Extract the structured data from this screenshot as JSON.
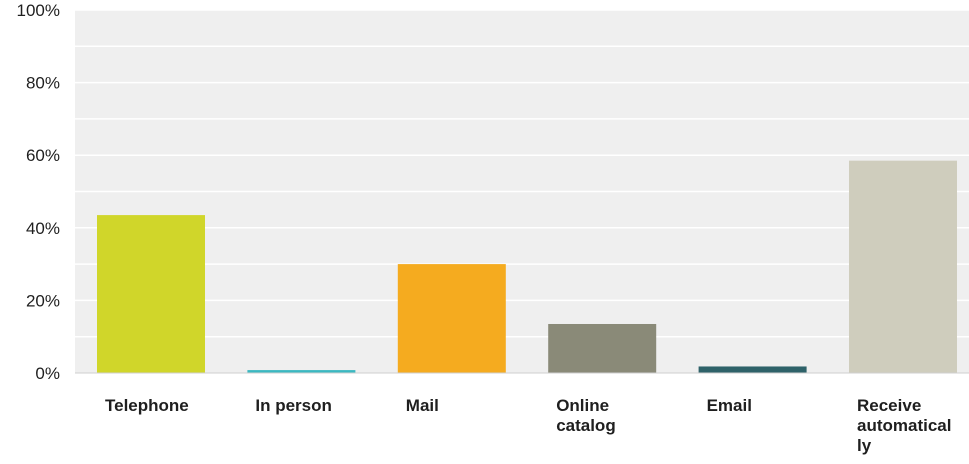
{
  "chart_data": {
    "type": "bar",
    "categories": [
      "Telephone",
      "In person",
      "Mail",
      "Online catalog",
      "Email",
      "Receive automatically"
    ],
    "category_label_lines": [
      [
        "Telephone"
      ],
      [
        "In person"
      ],
      [
        "Mail"
      ],
      [
        "Online",
        "catalog"
      ],
      [
        "Email"
      ],
      [
        "Receive",
        "automatical",
        "ly"
      ]
    ],
    "values": [
      43.5,
      0.8,
      30,
      13.5,
      1.8,
      58.5
    ],
    "unit": "%",
    "colors": [
      "#d0d62a",
      "#3bb8c1",
      "#f5ab1f",
      "#8a8a78",
      "#2e6269",
      "#cfcdbd"
    ],
    "ylim": [
      0,
      100
    ],
    "yticks": [
      0,
      20,
      40,
      60,
      80,
      100
    ],
    "ytick_labels": [
      "0%",
      "20%",
      "40%",
      "60%",
      "80%",
      "100%"
    ],
    "minor_gridlines": [
      10,
      30,
      50,
      70,
      90
    ],
    "title": "",
    "xlabel": "",
    "ylabel": "",
    "grid": true,
    "plot_background": "#efefef",
    "gridline_color": "#ffffff"
  }
}
